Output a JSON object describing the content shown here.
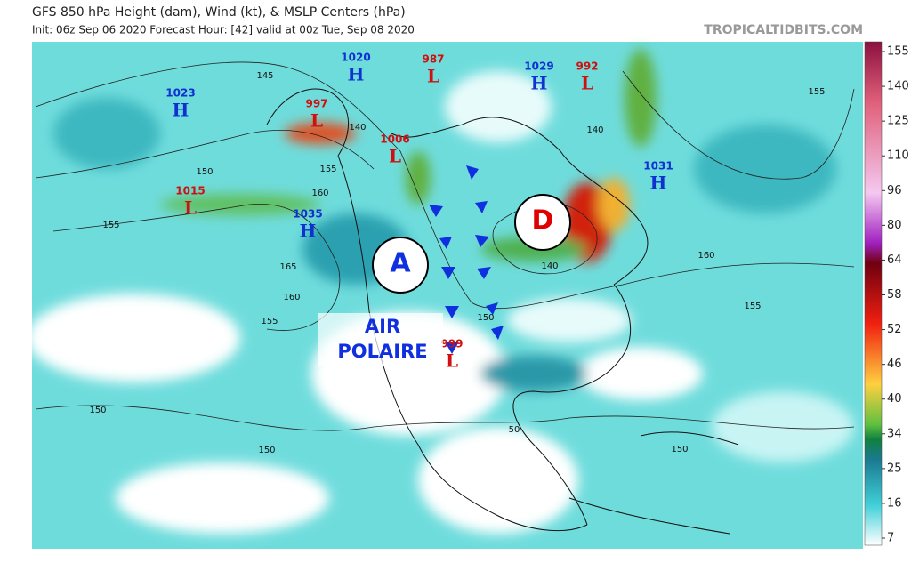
{
  "header": {
    "title": "GFS 850 hPa Height (dam), Wind (kt), & MSLP Centers (hPa)",
    "subtitle": "Init: 06z Sep 06 2020   Forecast Hour: [42]   valid at 00z Tue, Sep 08 2020",
    "credit": "TROPICALTIDBITS.COM"
  },
  "centers": [
    {
      "value": "1023",
      "type": "H"
    },
    {
      "value": "1020",
      "type": "H"
    },
    {
      "value": "987",
      "type": "L"
    },
    {
      "value": "1029",
      "type": "H"
    },
    {
      "value": "992",
      "type": "L"
    },
    {
      "value": "997",
      "type": "L"
    },
    {
      "value": "1006",
      "type": "L"
    },
    {
      "value": "1031",
      "type": "H"
    },
    {
      "value": "1015",
      "type": "L"
    },
    {
      "value": "1035",
      "type": "H"
    },
    {
      "value": "999",
      "type": "L"
    }
  ],
  "annotations": {
    "high": "A",
    "low": "D",
    "air": "AIR",
    "polaire": "POLAIRE"
  },
  "contour_labels": [
    "145",
    "140",
    "150",
    "155",
    "160",
    "155",
    "165",
    "160",
    "155",
    "150",
    "150",
    "140",
    "150",
    "155",
    "160",
    "155",
    "150",
    "50",
    "140"
  ],
  "colorbar": {
    "ticks": [
      155,
      140,
      125,
      110,
      96,
      80,
      64,
      58,
      52,
      46,
      40,
      34,
      25,
      16,
      7
    ]
  }
}
